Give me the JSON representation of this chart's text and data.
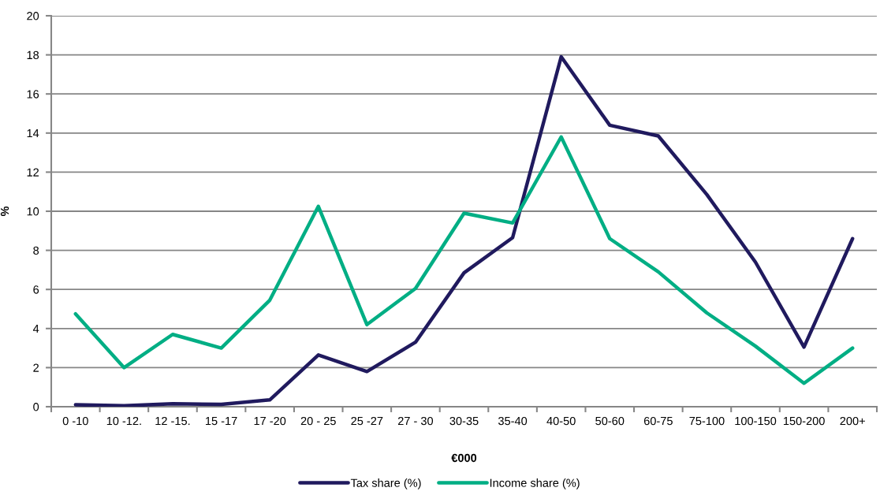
{
  "chart_data": {
    "type": "line",
    "xlabel": "€000",
    "ylabel": "%",
    "categories": [
      "0 -10",
      "10 -12.",
      "12 -15.",
      "15 -17",
      "17 -20",
      "20 - 25",
      "25 -27",
      "27 - 30",
      "30-35",
      "35-40",
      "40-50",
      "50-60",
      "60-75",
      "75-100",
      "100-150",
      "150-200",
      "200+"
    ],
    "series": [
      {
        "name": "Tax share (%)",
        "color": "#201a5e",
        "values": [
          0.1,
          0.05,
          0.15,
          0.12,
          0.35,
          2.65,
          1.8,
          3.3,
          6.85,
          8.65,
          17.9,
          14.4,
          13.85,
          10.85,
          7.4,
          3.05,
          8.6
        ]
      },
      {
        "name": "Income share (%)",
        "color": "#00ae84",
        "values": [
          4.75,
          2.0,
          3.7,
          3.0,
          5.45,
          10.25,
          4.2,
          6.05,
          9.9,
          9.4,
          13.8,
          8.6,
          6.9,
          4.8,
          3.1,
          1.2,
          3.0
        ]
      }
    ],
    "ylim": [
      0,
      20
    ],
    "yticks": [
      0,
      2,
      4,
      6,
      8,
      10,
      12,
      14,
      16,
      18,
      20
    ],
    "grid": "y",
    "legend": "bottom"
  }
}
